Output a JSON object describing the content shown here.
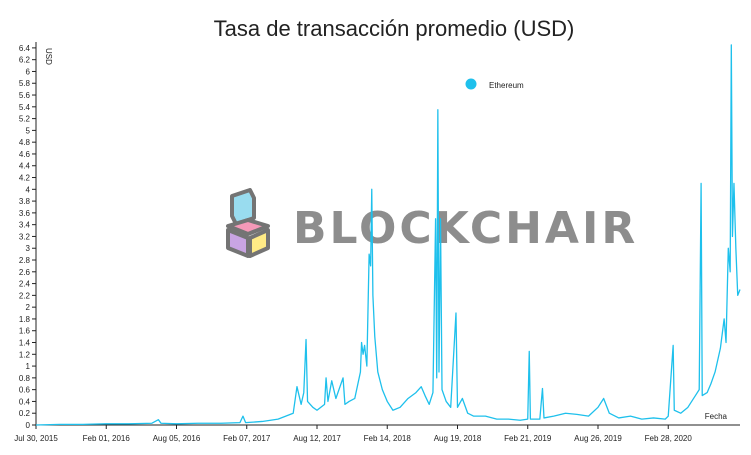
{
  "chart_data": {
    "type": "line",
    "title": "Tasa de transacción promedio (USD)",
    "ylabel": "USD",
    "xlabel": "Fecha",
    "ylim": [
      0,
      6.5
    ],
    "y_ticks": [
      0,
      0.2,
      0.4,
      0.6,
      0.8,
      1,
      1.2,
      1.4,
      1.6,
      1.8,
      2,
      2.2,
      2.4,
      2.6,
      2.8,
      3,
      3.2,
      3.4,
      3.6,
      3.8,
      4,
      4.2,
      4.4,
      4.6,
      4.8,
      5,
      5.2,
      5.4,
      5.6,
      5.8,
      6,
      6.2,
      6.4
    ],
    "y_tick_labels": [
      "0",
      "0.2",
      "0.4",
      "0.6",
      "0.8",
      "1",
      "1.2",
      "1.4",
      "1.6",
      "1.8",
      "2",
      "2.2",
      "2.4",
      "2.6",
      "2.8",
      "3",
      "3.2",
      "3.4",
      "3.6",
      "3.8",
      "4",
      "4.2",
      "4.4",
      "4.6",
      "4.8",
      "5",
      "5.2",
      "5.4",
      "5.6",
      "5.8",
      "6",
      "6.2",
      "6.4"
    ],
    "x_ticks": [
      "2015-07-30",
      "2016-02-01",
      "2016-08-05",
      "2017-02-07",
      "2017-08-12",
      "2018-02-14",
      "2018-08-19",
      "2019-02-21",
      "2019-08-26",
      "2020-02-28"
    ],
    "x_tick_labels": [
      "Jul 30, 2015",
      "Feb 01, 2016",
      "Aug 05, 2016",
      "Feb 07, 2017",
      "Aug 12, 2017",
      "Feb 14, 2018",
      "Aug 19, 2018",
      "Feb 21, 2019",
      "Aug 26, 2019",
      "Feb 28, 2020"
    ],
    "xlim": [
      "2015-07-30",
      "2020-09-05"
    ],
    "legend_position": "top-right",
    "grid": false,
    "series": [
      {
        "name": "Ethereum",
        "color": "#1ec0ec",
        "points": [
          [
            "2015-07-30",
            0.0
          ],
          [
            "2015-10-01",
            0.01
          ],
          [
            "2015-12-01",
            0.01
          ],
          [
            "2016-02-01",
            0.02
          ],
          [
            "2016-04-01",
            0.02
          ],
          [
            "2016-06-01",
            0.03
          ],
          [
            "2016-06-18",
            0.09
          ],
          [
            "2016-06-25",
            0.03
          ],
          [
            "2016-08-05",
            0.02
          ],
          [
            "2016-10-01",
            0.03
          ],
          [
            "2016-12-01",
            0.03
          ],
          [
            "2017-01-20",
            0.04
          ],
          [
            "2017-01-28",
            0.15
          ],
          [
            "2017-02-04",
            0.04
          ],
          [
            "2017-03-20",
            0.06
          ],
          [
            "2017-05-01",
            0.1
          ],
          [
            "2017-06-10",
            0.2
          ],
          [
            "2017-06-20",
            0.65
          ],
          [
            "2017-07-01",
            0.35
          ],
          [
            "2017-07-08",
            0.55
          ],
          [
            "2017-07-14",
            1.45
          ],
          [
            "2017-07-18",
            0.4
          ],
          [
            "2017-08-01",
            0.3
          ],
          [
            "2017-08-12",
            0.25
          ],
          [
            "2017-09-01",
            0.35
          ],
          [
            "2017-09-05",
            0.8
          ],
          [
            "2017-09-10",
            0.4
          ],
          [
            "2017-09-20",
            0.75
          ],
          [
            "2017-10-01",
            0.45
          ],
          [
            "2017-10-20",
            0.8
          ],
          [
            "2017-10-25",
            0.35
          ],
          [
            "2017-11-05",
            0.4
          ],
          [
            "2017-11-20",
            0.45
          ],
          [
            "2017-12-05",
            0.9
          ],
          [
            "2017-12-08",
            1.4
          ],
          [
            "2017-12-12",
            1.2
          ],
          [
            "2017-12-16",
            1.35
          ],
          [
            "2017-12-22",
            1.0
          ],
          [
            "2017-12-28",
            2.9
          ],
          [
            "2018-01-01",
            2.7
          ],
          [
            "2018-01-04",
            4.0
          ],
          [
            "2018-01-07",
            2.2
          ],
          [
            "2018-01-12",
            1.5
          ],
          [
            "2018-01-20",
            0.9
          ],
          [
            "2018-02-01",
            0.6
          ],
          [
            "2018-02-14",
            0.4
          ],
          [
            "2018-03-01",
            0.25
          ],
          [
            "2018-03-20",
            0.3
          ],
          [
            "2018-04-10",
            0.45
          ],
          [
            "2018-05-01",
            0.55
          ],
          [
            "2018-05-15",
            0.65
          ],
          [
            "2018-05-25",
            0.5
          ],
          [
            "2018-06-05",
            0.35
          ],
          [
            "2018-06-15",
            0.55
          ],
          [
            "2018-06-22",
            3.5
          ],
          [
            "2018-06-25",
            0.8
          ],
          [
            "2018-06-28",
            5.35
          ],
          [
            "2018-07-01",
            0.9
          ],
          [
            "2018-07-05",
            3.5
          ],
          [
            "2018-07-09",
            0.6
          ],
          [
            "2018-07-20",
            0.4
          ],
          [
            "2018-08-01",
            0.3
          ],
          [
            "2018-08-15",
            1.9
          ],
          [
            "2018-08-19",
            0.3
          ],
          [
            "2018-09-01",
            0.45
          ],
          [
            "2018-09-15",
            0.2
          ],
          [
            "2018-10-01",
            0.15
          ],
          [
            "2018-11-01",
            0.15
          ],
          [
            "2018-12-01",
            0.1
          ],
          [
            "2019-01-01",
            0.1
          ],
          [
            "2019-02-01",
            0.08
          ],
          [
            "2019-02-21",
            0.1
          ],
          [
            "2019-02-25",
            1.25
          ],
          [
            "2019-02-28",
            0.1
          ],
          [
            "2019-03-25",
            0.1
          ],
          [
            "2019-04-01",
            0.62
          ],
          [
            "2019-04-05",
            0.12
          ],
          [
            "2019-05-01",
            0.15
          ],
          [
            "2019-06-01",
            0.2
          ],
          [
            "2019-07-01",
            0.18
          ],
          [
            "2019-08-01",
            0.15
          ],
          [
            "2019-08-26",
            0.3
          ],
          [
            "2019-09-10",
            0.45
          ],
          [
            "2019-09-25",
            0.2
          ],
          [
            "2019-10-20",
            0.12
          ],
          [
            "2019-11-20",
            0.15
          ],
          [
            "2019-12-20",
            0.1
          ],
          [
            "2020-01-20",
            0.12
          ],
          [
            "2020-02-20",
            0.1
          ],
          [
            "2020-02-28",
            0.15
          ],
          [
            "2020-03-12",
            1.35
          ],
          [
            "2020-03-15",
            0.25
          ],
          [
            "2020-04-01",
            0.2
          ],
          [
            "2020-04-20",
            0.3
          ],
          [
            "2020-05-10",
            0.5
          ],
          [
            "2020-05-20",
            0.6
          ],
          [
            "2020-05-25",
            4.1
          ],
          [
            "2020-05-28",
            0.5
          ],
          [
            "2020-06-10",
            0.55
          ],
          [
            "2020-06-20",
            0.7
          ],
          [
            "2020-07-01",
            0.9
          ],
          [
            "2020-07-15",
            1.3
          ],
          [
            "2020-07-25",
            1.8
          ],
          [
            "2020-07-30",
            1.4
          ],
          [
            "2020-08-05",
            3.0
          ],
          [
            "2020-08-10",
            2.6
          ],
          [
            "2020-08-13",
            6.45
          ],
          [
            "2020-08-16",
            3.2
          ],
          [
            "2020-08-20",
            4.1
          ],
          [
            "2020-08-25",
            3.0
          ],
          [
            "2020-08-30",
            2.2
          ],
          [
            "2020-09-05",
            2.3
          ]
        ]
      }
    ]
  },
  "watermark": {
    "text": "BLOCKCHAIR"
  }
}
